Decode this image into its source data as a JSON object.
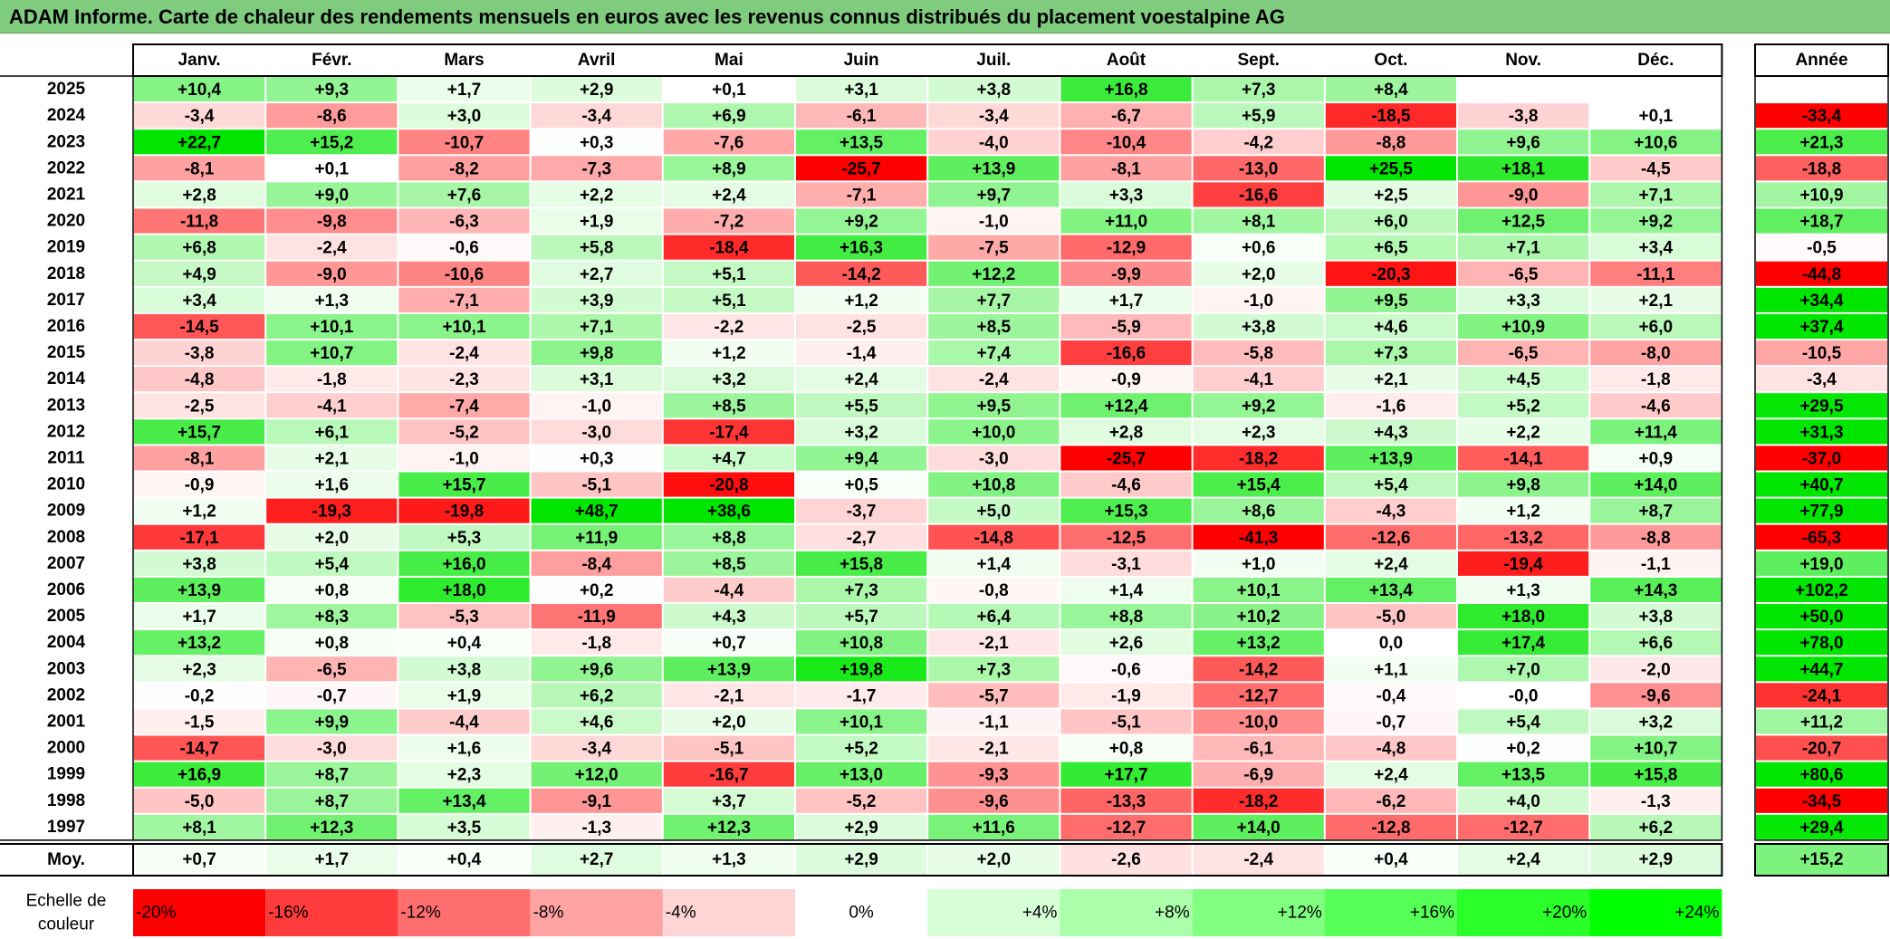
{
  "title": "ADAM Informe. Carte de chaleur des rendements mensuels en euros avec les revenus connus distribués du placement voestalpine AG",
  "chart_data": {
    "type": "heatmap",
    "months": [
      "Janv.",
      "Févr.",
      "Mars",
      "Avril",
      "Mai",
      "Juin",
      "Juil.",
      "Août",
      "Sept.",
      "Oct.",
      "Nov.",
      "Déc."
    ],
    "year_col_label": "Année",
    "rows": [
      {
        "year": "2025",
        "m": [
          "+10,4",
          "+9,3",
          "+1,7",
          "+2,9",
          "+0,1",
          "+3,1",
          "+3,8",
          "+16,8",
          "+7,3",
          "+8,4",
          "",
          ""
        ],
        "y": ""
      },
      {
        "year": "2024",
        "m": [
          "-3,4",
          "-8,6",
          "+3,0",
          "-3,4",
          "+6,9",
          "-6,1",
          "-3,4",
          "-6,7",
          "+5,9",
          "-18,5",
          "-3,8",
          "+0,1"
        ],
        "y": "-33,4"
      },
      {
        "year": "2023",
        "m": [
          "+22,7",
          "+15,2",
          "-10,7",
          "+0,3",
          "-7,6",
          "+13,5",
          "-4,0",
          "-10,4",
          "-4,2",
          "-8,8",
          "+9,6",
          "+10,6"
        ],
        "y": "+21,3"
      },
      {
        "year": "2022",
        "m": [
          "-8,1",
          "+0,1",
          "-8,2",
          "-7,3",
          "+8,9",
          "-25,7",
          "+13,9",
          "-8,1",
          "-13,0",
          "+25,5",
          "+18,1",
          "-4,5"
        ],
        "y": "-18,8"
      },
      {
        "year": "2021",
        "m": [
          "+2,8",
          "+9,0",
          "+7,6",
          "+2,2",
          "+2,4",
          "-7,1",
          "+9,7",
          "+3,3",
          "-16,6",
          "+2,5",
          "-9,0",
          "+7,1"
        ],
        "y": "+10,9"
      },
      {
        "year": "2020",
        "m": [
          "-11,8",
          "-9,8",
          "-6,3",
          "+1,9",
          "-7,2",
          "+9,2",
          "-1,0",
          "+11,0",
          "+8,1",
          "+6,0",
          "+12,5",
          "+9,2"
        ],
        "y": "+18,7"
      },
      {
        "year": "2019",
        "m": [
          "+6,8",
          "-2,4",
          "-0,6",
          "+5,8",
          "-18,4",
          "+16,3",
          "-7,5",
          "-12,9",
          "+0,6",
          "+6,5",
          "+7,1",
          "+3,4"
        ],
        "y": "-0,5"
      },
      {
        "year": "2018",
        "m": [
          "+4,9",
          "-9,0",
          "-10,6",
          "+2,7",
          "+5,1",
          "-14,2",
          "+12,2",
          "-9,9",
          "+2,0",
          "-20,3",
          "-6,5",
          "-11,1"
        ],
        "y": "-44,8"
      },
      {
        "year": "2017",
        "m": [
          "+3,4",
          "+1,3",
          "-7,1",
          "+3,9",
          "+5,1",
          "+1,2",
          "+7,7",
          "+1,7",
          "-1,0",
          "+9,5",
          "+3,3",
          "+2,1"
        ],
        "y": "+34,4"
      },
      {
        "year": "2016",
        "m": [
          "-14,5",
          "+10,1",
          "+10,1",
          "+7,1",
          "-2,2",
          "-2,5",
          "+8,5",
          "-5,9",
          "+3,8",
          "+4,6",
          "+10,9",
          "+6,0"
        ],
        "y": "+37,4"
      },
      {
        "year": "2015",
        "m": [
          "-3,8",
          "+10,7",
          "-2,4",
          "+9,8",
          "+1,2",
          "-1,4",
          "+7,4",
          "-16,6",
          "-5,8",
          "+7,3",
          "-6,5",
          "-8,0"
        ],
        "y": "-10,5"
      },
      {
        "year": "2014",
        "m": [
          "-4,8",
          "-1,8",
          "-2,3",
          "+3,1",
          "+3,2",
          "+2,4",
          "-2,4",
          "-0,9",
          "-4,1",
          "+2,1",
          "+4,5",
          "-1,8"
        ],
        "y": "-3,4"
      },
      {
        "year": "2013",
        "m": [
          "-2,5",
          "-4,1",
          "-7,4",
          "-1,0",
          "+8,5",
          "+5,5",
          "+9,5",
          "+12,4",
          "+9,2",
          "-1,6",
          "+5,2",
          "-4,6"
        ],
        "y": "+29,5"
      },
      {
        "year": "2012",
        "m": [
          "+15,7",
          "+6,1",
          "-5,2",
          "-3,0",
          "-17,4",
          "+3,2",
          "+10,0",
          "+2,8",
          "+2,3",
          "+4,3",
          "+2,2",
          "+11,4"
        ],
        "y": "+31,3"
      },
      {
        "year": "2011",
        "m": [
          "-8,1",
          "+2,1",
          "-1,0",
          "+0,3",
          "+4,7",
          "+9,4",
          "-3,0",
          "-25,7",
          "-18,2",
          "+13,9",
          "-14,1",
          "+0,9"
        ],
        "y": "-37,0"
      },
      {
        "year": "2010",
        "m": [
          "-0,9",
          "+1,6",
          "+15,7",
          "-5,1",
          "-20,8",
          "+0,5",
          "+10,8",
          "-4,6",
          "+15,4",
          "+5,4",
          "+9,8",
          "+14,0"
        ],
        "y": "+40,7"
      },
      {
        "year": "2009",
        "m": [
          "+1,2",
          "-19,3",
          "-19,8",
          "+48,7",
          "+38,6",
          "-3,7",
          "+5,0",
          "+15,3",
          "+8,6",
          "-4,3",
          "+1,2",
          "+8,7"
        ],
        "y": "+77,9"
      },
      {
        "year": "2008",
        "m": [
          "-17,1",
          "+2,0",
          "+5,3",
          "+11,9",
          "+8,8",
          "-2,7",
          "-14,8",
          "-12,5",
          "-41,3",
          "-12,6",
          "-13,2",
          "-8,8"
        ],
        "y": "-65,3"
      },
      {
        "year": "2007",
        "m": [
          "+3,8",
          "+5,4",
          "+16,0",
          "-8,4",
          "+8,5",
          "+15,8",
          "+1,4",
          "-3,1",
          "+1,0",
          "+2,4",
          "-19,4",
          "-1,1"
        ],
        "y": "+19,0"
      },
      {
        "year": "2006",
        "m": [
          "+13,9",
          "+0,8",
          "+18,0",
          "+0,2",
          "-4,4",
          "+7,3",
          "-0,8",
          "+1,4",
          "+10,1",
          "+13,4",
          "+1,3",
          "+14,3"
        ],
        "y": "+102,2"
      },
      {
        "year": "2005",
        "m": [
          "+1,7",
          "+8,3",
          "-5,3",
          "-11,9",
          "+4,3",
          "+5,7",
          "+6,4",
          "+8,8",
          "+10,2",
          "-5,0",
          "+18,0",
          "+3,8"
        ],
        "y": "+50,0"
      },
      {
        "year": "2004",
        "m": [
          "+13,2",
          "+0,8",
          "+0,4",
          "-1,8",
          "+0,7",
          "+10,8",
          "-2,1",
          "+2,6",
          "+13,2",
          "0,0",
          "+17,4",
          "+6,6"
        ],
        "y": "+78,0"
      },
      {
        "year": "2003",
        "m": [
          "+2,3",
          "-6,5",
          "+3,8",
          "+9,6",
          "+13,9",
          "+19,8",
          "+7,3",
          "-0,6",
          "-14,2",
          "+1,1",
          "+7,0",
          "-2,0"
        ],
        "y": "+44,7"
      },
      {
        "year": "2002",
        "m": [
          "-0,2",
          "-0,7",
          "+1,9",
          "+6,2",
          "-2,1",
          "-1,7",
          "-5,7",
          "-1,9",
          "-12,7",
          "-0,4",
          "-0,0",
          "-9,6"
        ],
        "y": "-24,1"
      },
      {
        "year": "2001",
        "m": [
          "-1,5",
          "+9,9",
          "-4,4",
          "+4,6",
          "+2,0",
          "+10,1",
          "-1,1",
          "-5,1",
          "-10,0",
          "-0,7",
          "+5,4",
          "+3,2"
        ],
        "y": "+11,2"
      },
      {
        "year": "2000",
        "m": [
          "-14,7",
          "-3,0",
          "+1,6",
          "-3,4",
          "-5,1",
          "+5,2",
          "-2,1",
          "+0,8",
          "-6,1",
          "-4,8",
          "+0,2",
          "+10,7"
        ],
        "y": "-20,7"
      },
      {
        "year": "1999",
        "m": [
          "+16,9",
          "+8,7",
          "+2,3",
          "+12,0",
          "-16,7",
          "+13,0",
          "-9,3",
          "+17,7",
          "-6,9",
          "+2,4",
          "+13,5",
          "+15,8"
        ],
        "y": "+80,6"
      },
      {
        "year": "1998",
        "m": [
          "-5,0",
          "+8,7",
          "+13,4",
          "-9,1",
          "+3,7",
          "-5,2",
          "-9,6",
          "-13,3",
          "-18,2",
          "-6,2",
          "+4,0",
          "-1,3"
        ],
        "y": "-34,5"
      },
      {
        "year": "1997",
        "m": [
          "+8,1",
          "+12,3",
          "+3,5",
          "-1,3",
          "+12,3",
          "+2,9",
          "+11,6",
          "-12,7",
          "+14,0",
          "-12,8",
          "-12,7",
          "+6,2"
        ],
        "y": "+29,4"
      }
    ],
    "avg_label": "Moy.",
    "avg": [
      "+0,7",
      "+1,7",
      "+0,4",
      "+2,7",
      "+1,3",
      "+2,9",
      "+2,0",
      "-2,6",
      "-2,4",
      "+0,4",
      "+2,4",
      "+2,9"
    ],
    "avg_year": "+15,2",
    "scale_label_line1": "Echelle de",
    "scale_label_line2": "couleur",
    "scale": [
      "-20%",
      "-16%",
      "-12%",
      "-8%",
      "-4%",
      "0%",
      "+4%",
      "+8%",
      "+12%",
      "+16%",
      "+20%",
      "+24%"
    ],
    "scale_colors": [
      "#ff0000",
      "#ff3b3b",
      "#ff6e6e",
      "#ffa2a2",
      "#ffd4d4",
      "#ffffff",
      "#d6ffd6",
      "#abffab",
      "#80ff80",
      "#55ff55",
      "#2aff2a",
      "#00ff00"
    ],
    "neg_color": "#ff0000",
    "pos_color": "#00e600"
  }
}
